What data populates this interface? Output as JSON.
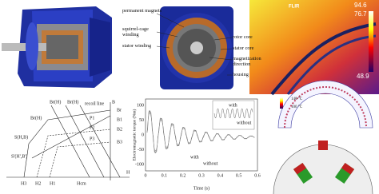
{
  "motor_section": {
    "labels": [
      "permanent magnets",
      "squirrel-cage winding",
      "stator winding",
      "rotor core",
      "stator core",
      "magnetization direction",
      "housing"
    ]
  },
  "thermal": {
    "brand": "FLIR",
    "readings": [
      "94.6",
      "76.7",
      "48.9"
    ]
  },
  "bh_curve": {
    "axis_b": "B",
    "axis_h": "H",
    "curves": [
      "Br(H)",
      "Br(H)",
      "Br(H)"
    ],
    "recoil": "recoil line",
    "points": [
      "S(H,B)",
      "S'(H',B')",
      "P1",
      "P2",
      "P3"
    ],
    "b_levels": [
      "Br",
      "B1",
      "B2",
      "B3"
    ],
    "h_levels": [
      "H3",
      "H2",
      "H1",
      "Hcm"
    ]
  },
  "torque": {
    "y_label": "Electromagnetic torque (Nm)",
    "x_label": "Time (s)",
    "x_ticks": [
      "0",
      "0.1",
      "0.2",
      "0.3",
      "0.4",
      "0.5",
      "0.6"
    ],
    "y_ticks": [
      "100",
      "50",
      "0",
      "-50",
      "-100"
    ],
    "legend": [
      "with",
      "without"
    ]
  },
  "lamination": {
    "legend": [
      "140 °C",
      "100 °C"
    ]
  }
}
